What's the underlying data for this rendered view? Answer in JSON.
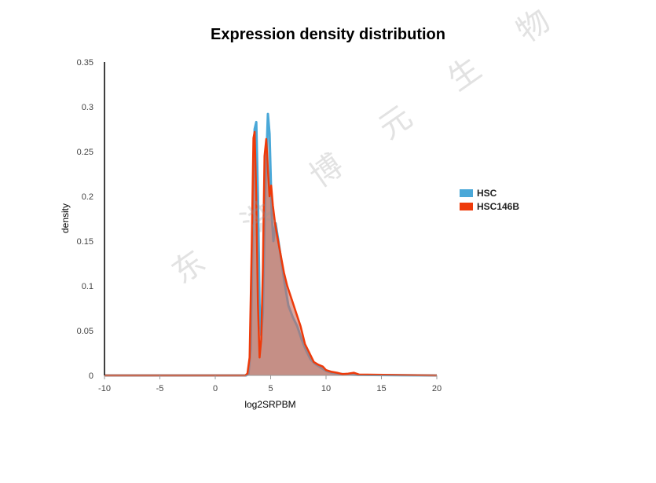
{
  "chart_data": {
    "type": "area",
    "title": "Expression density distribution",
    "xlabel": "log2SRPBM",
    "ylabel": "density",
    "xlim": [
      -10,
      20
    ],
    "ylim": [
      0,
      0.35
    ],
    "x_ticks": [
      "-10",
      "-5",
      "0",
      "5",
      "10",
      "15",
      "20"
    ],
    "y_ticks": [
      "0",
      "0.05",
      "0.1",
      "0.15",
      "0.2",
      "0.25",
      "0.3",
      "0.35"
    ],
    "legend_position": "right",
    "series": [
      {
        "name": "HSC",
        "color": "#4aa8d8",
        "points": [
          [
            -10,
            0
          ],
          [
            2.8,
            0
          ],
          [
            3.0,
            0.002
          ],
          [
            3.2,
            0.03
          ],
          [
            3.4,
            0.18
          ],
          [
            3.55,
            0.275
          ],
          [
            3.7,
            0.283
          ],
          [
            3.85,
            0.2
          ],
          [
            4.0,
            0.08
          ],
          [
            4.15,
            0.045
          ],
          [
            4.3,
            0.07
          ],
          [
            4.5,
            0.2
          ],
          [
            4.75,
            0.292
          ],
          [
            4.9,
            0.27
          ],
          [
            5.1,
            0.18
          ],
          [
            5.25,
            0.15
          ],
          [
            5.45,
            0.17
          ],
          [
            5.7,
            0.15
          ],
          [
            6.0,
            0.125
          ],
          [
            6.3,
            0.1
          ],
          [
            6.6,
            0.078
          ],
          [
            7.0,
            0.065
          ],
          [
            7.4,
            0.055
          ],
          [
            7.8,
            0.04
          ],
          [
            8.2,
            0.028
          ],
          [
            8.6,
            0.018
          ],
          [
            9.0,
            0.013
          ],
          [
            9.5,
            0.009
          ],
          [
            10.0,
            0.005
          ],
          [
            10.5,
            0.003
          ],
          [
            11.0,
            0.002
          ],
          [
            12.0,
            0.001
          ],
          [
            13.0,
            0.0005
          ],
          [
            20,
            0
          ]
        ]
      },
      {
        "name": "HSC146B",
        "color": "#ee3a0a",
        "points": [
          [
            -10,
            0
          ],
          [
            2.7,
            0
          ],
          [
            2.9,
            0.002
          ],
          [
            3.1,
            0.02
          ],
          [
            3.3,
            0.15
          ],
          [
            3.45,
            0.265
          ],
          [
            3.55,
            0.272
          ],
          [
            3.7,
            0.2
          ],
          [
            3.85,
            0.08
          ],
          [
            4.0,
            0.02
          ],
          [
            4.15,
            0.04
          ],
          [
            4.3,
            0.12
          ],
          [
            4.45,
            0.245
          ],
          [
            4.6,
            0.264
          ],
          [
            4.75,
            0.23
          ],
          [
            4.9,
            0.2
          ],
          [
            5.05,
            0.212
          ],
          [
            5.2,
            0.19
          ],
          [
            5.4,
            0.17
          ],
          [
            5.6,
            0.155
          ],
          [
            5.9,
            0.135
          ],
          [
            6.2,
            0.115
          ],
          [
            6.5,
            0.1
          ],
          [
            6.9,
            0.085
          ],
          [
            7.3,
            0.07
          ],
          [
            7.7,
            0.055
          ],
          [
            8.1,
            0.035
          ],
          [
            8.5,
            0.025
          ],
          [
            8.9,
            0.015
          ],
          [
            9.3,
            0.012
          ],
          [
            9.7,
            0.01
          ],
          [
            10.0,
            0.006
          ],
          [
            10.5,
            0.004
          ],
          [
            11.0,
            0.003
          ],
          [
            11.5,
            0.0015
          ],
          [
            12.0,
            0.002
          ],
          [
            12.5,
            0.003
          ],
          [
            13.0,
            0.001
          ],
          [
            20,
            0
          ]
        ]
      }
    ]
  },
  "watermark": "东 洪 博 元 生 物"
}
